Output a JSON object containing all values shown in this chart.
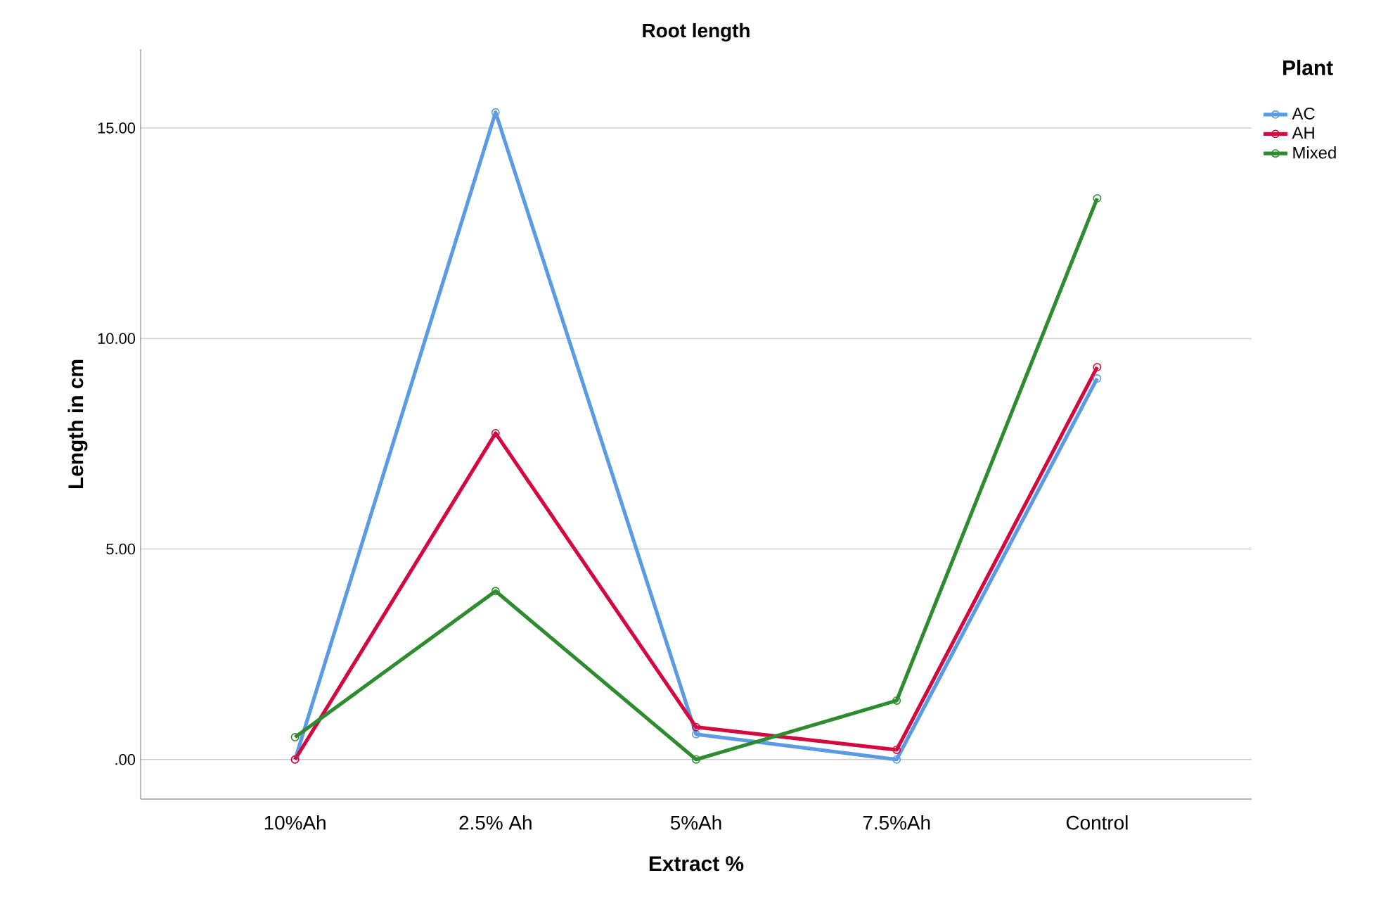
{
  "chart_data": {
    "type": "line",
    "title": "Root length",
    "xlabel": "Extract %",
    "ylabel": "Length in cm",
    "legend_title": "Plant",
    "categories": [
      "10%Ah",
      "2.5% Ah",
      "5%Ah",
      "7.5%Ah",
      "Control"
    ],
    "series": [
      {
        "name": "AC",
        "color": "#5b9be6",
        "values": [
          0.0,
          15.37,
          0.6,
          0.0,
          9.05
        ]
      },
      {
        "name": "AH",
        "color": "#d4083e",
        "values": [
          0.0,
          7.75,
          0.77,
          0.23,
          9.32
        ]
      },
      {
        "name": "Mixed",
        "color": "#2e8b2e",
        "values": [
          0.53,
          4.0,
          0.0,
          1.4,
          13.33
        ]
      }
    ],
    "ylim": [
      -0.94,
      16.87
    ],
    "yticks": [
      {
        "value": 0,
        "label": ".00"
      },
      {
        "value": 5,
        "label": "5.00"
      },
      {
        "value": 10,
        "label": "10.00"
      },
      {
        "value": 15,
        "label": "15.00"
      }
    ],
    "grid": "y",
    "legend": "top right",
    "marker": "circle",
    "line_style": "solid"
  }
}
